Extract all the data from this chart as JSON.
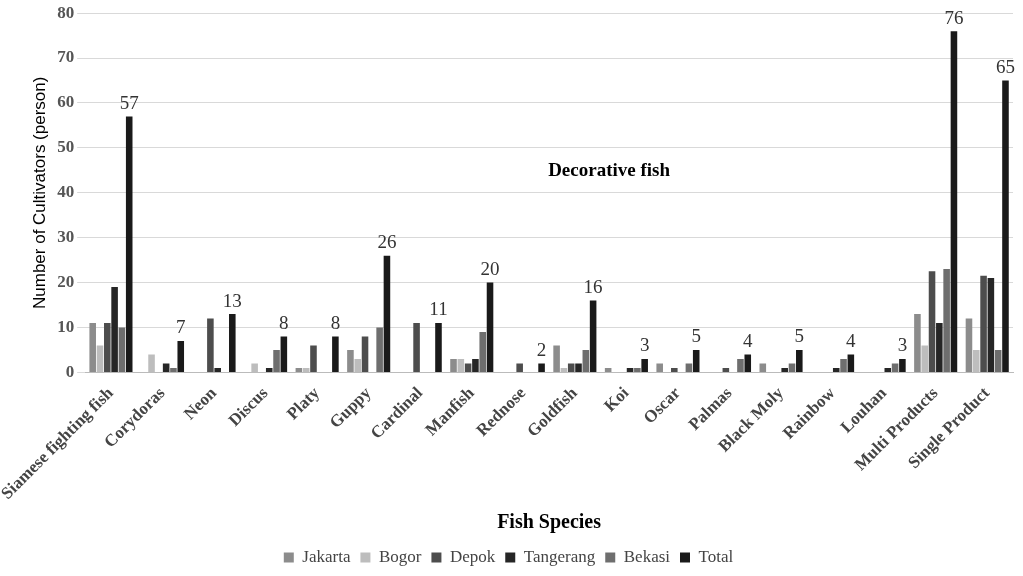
{
  "chart_data": {
    "type": "bar",
    "title": "Decorative fish",
    "xlabel": "Fish Species",
    "ylabel": "Number of Cultivators (person)",
    "categories": [
      "Siamese fighting fish",
      "Corydoras",
      "Neon",
      "Discus",
      "Platy",
      "Guppy",
      "Cardinal",
      "Manfish",
      "Rednose",
      "Goldfish",
      "Koi",
      "Oscar",
      "Palmas",
      "Black Moly",
      "Rainbow",
      "Louhan",
      "Multi Products",
      "Single Product"
    ],
    "series": [
      {
        "name": "Jakarta",
        "color": "#8c8c8c",
        "values": [
          11,
          0,
          0,
          0,
          1,
          5,
          0,
          3,
          0,
          6,
          1,
          2,
          0,
          2,
          0,
          0,
          13,
          12
        ]
      },
      {
        "name": "Bogor",
        "color": "#bdbdbd",
        "values": [
          6,
          4,
          0,
          2,
          1,
          3,
          0,
          3,
          0,
          1,
          0,
          0,
          0,
          0,
          0,
          0,
          6,
          5
        ]
      },
      {
        "name": "Depok",
        "color": "#4d4d4d",
        "values": [
          11,
          0,
          12,
          0,
          6,
          8,
          11,
          2,
          2,
          2,
          0,
          1,
          1,
          0,
          0,
          0,
          22.5,
          21.5
        ]
      },
      {
        "name": "Tangerang",
        "color": "#262626",
        "values": [
          19,
          2,
          1,
          1,
          0,
          0,
          0,
          3,
          0,
          2,
          1,
          0,
          0,
          1,
          1,
          1,
          11,
          21
        ]
      },
      {
        "name": "Bekasi",
        "color": "#6e6e6e",
        "values": [
          10,
          1,
          0,
          5,
          0,
          10,
          0,
          9,
          0,
          5,
          1,
          2,
          3,
          2,
          3,
          2,
          23,
          5
        ]
      },
      {
        "name": "Total",
        "color": "#1a1a1a",
        "values": [
          57,
          7,
          13,
          8,
          8,
          26,
          11,
          20,
          2,
          16,
          3,
          5,
          4,
          5,
          4,
          3,
          76,
          65
        ],
        "value_labels": [
          "57",
          "7",
          "13",
          "8",
          "8",
          "26",
          "11",
          "20",
          "2",
          "16",
          "3",
          "5",
          "4",
          "5",
          "4",
          "3",
          "76",
          "65"
        ]
      }
    ],
    "ylim": [
      0,
      80
    ],
    "yticks": [
      0,
      10,
      20,
      30,
      40,
      50,
      60,
      70,
      80
    ],
    "grid": "y",
    "legend": "bottom"
  }
}
